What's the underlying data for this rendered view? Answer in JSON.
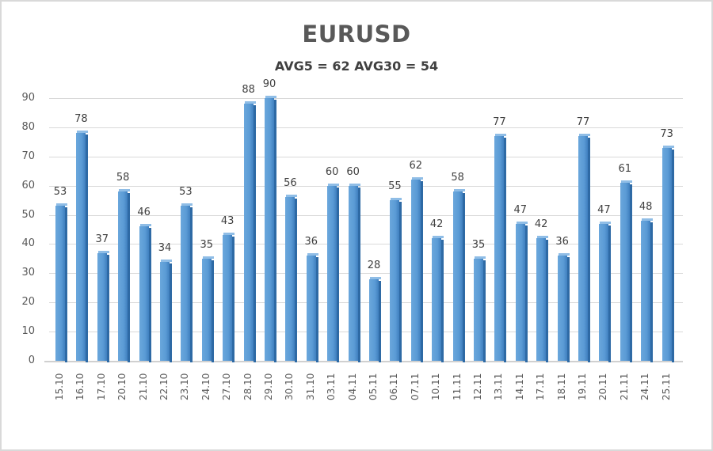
{
  "chart_data": {
    "type": "bar",
    "title": "EURUSD",
    "subtitle": "AVG5 = 62 AVG30 = 54",
    "xlabel": "",
    "ylabel": "",
    "ylim": [
      0,
      90
    ],
    "yticks": [
      0,
      10,
      20,
      30,
      40,
      50,
      60,
      70,
      80,
      90
    ],
    "grid": true,
    "legend": null,
    "bar_color": "#5b9bd5",
    "categories": [
      "15.10",
      "16.10",
      "17.10",
      "20.10",
      "21.10",
      "22.10",
      "23.10",
      "24.10",
      "27.10",
      "28.10",
      "29.10",
      "30.10",
      "31.10",
      "03.11",
      "04.11",
      "05.11",
      "06.11",
      "07.11",
      "10.11",
      "11.11",
      "12.11",
      "13.11",
      "14.11",
      "17.11",
      "18.11",
      "19.11",
      "20.11",
      "21.11",
      "24.11",
      "25.11"
    ],
    "values": [
      53,
      78,
      37,
      58,
      46,
      34,
      53,
      35,
      43,
      88,
      90,
      56,
      36,
      60,
      60,
      28,
      55,
      62,
      42,
      58,
      35,
      77,
      47,
      42,
      36,
      77,
      47,
      61,
      48,
      73
    ]
  }
}
